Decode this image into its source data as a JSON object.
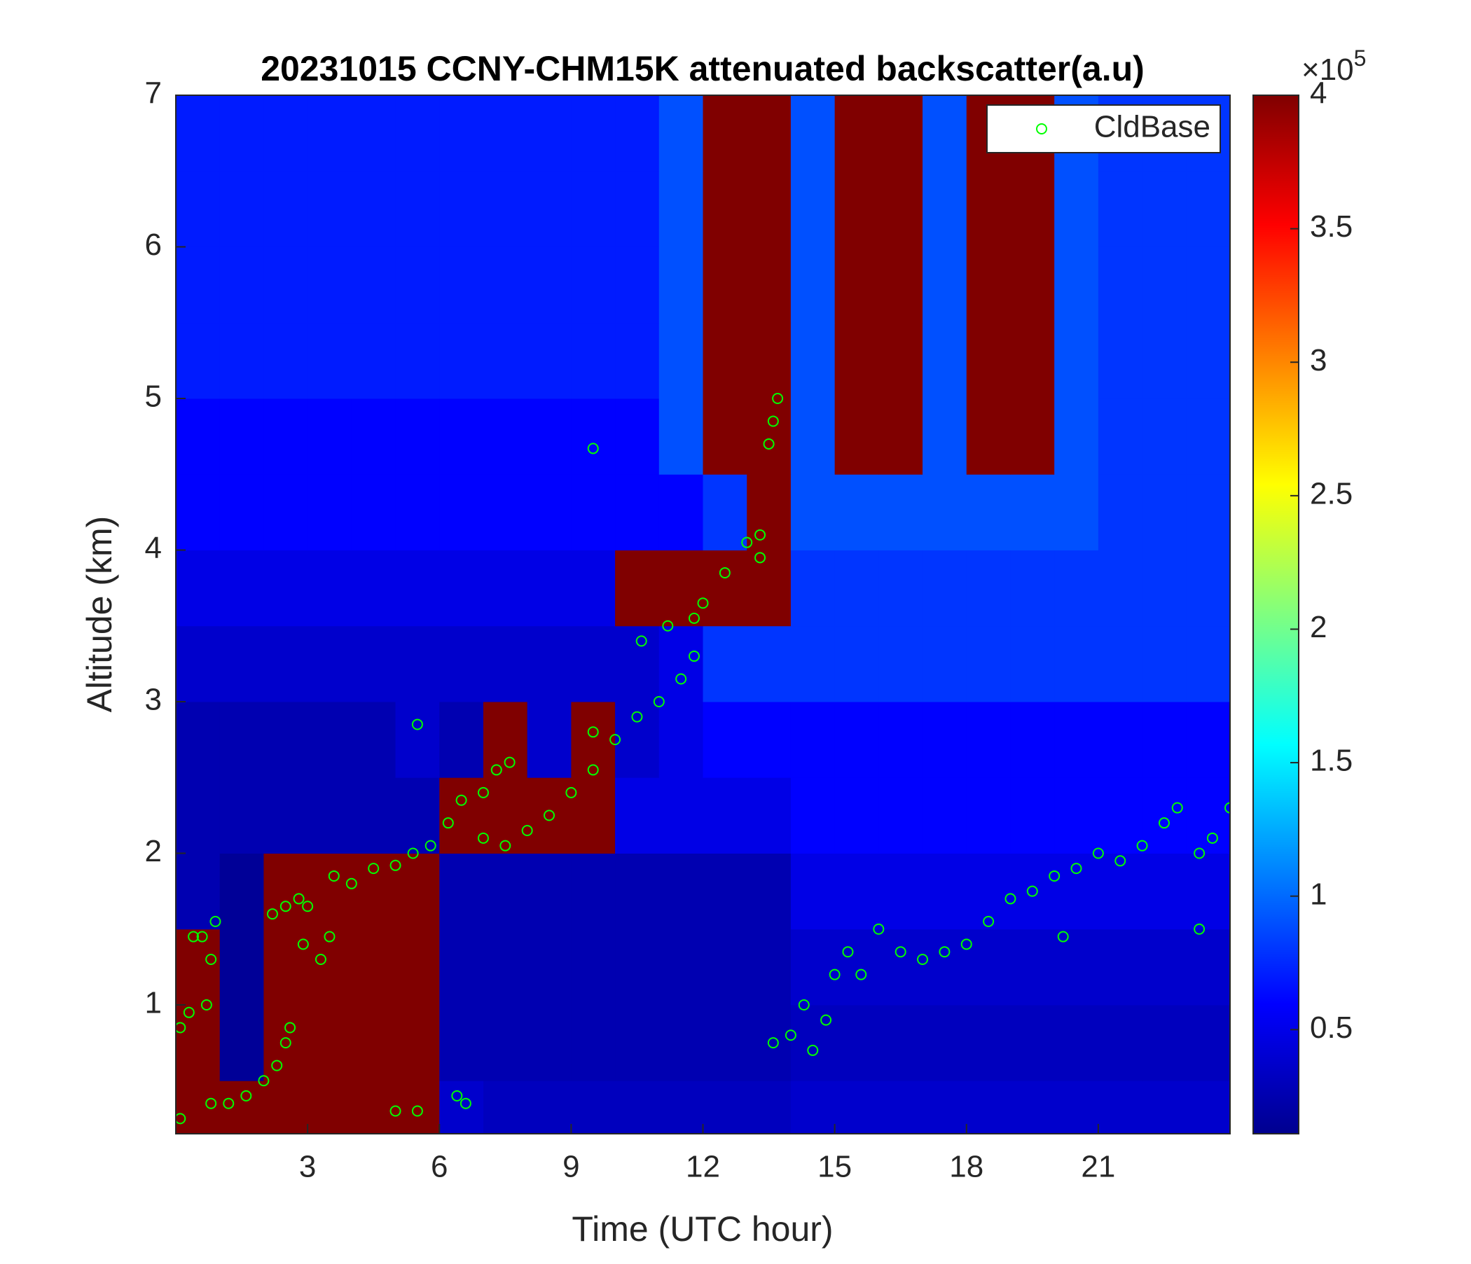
{
  "chart_data": {
    "type": "heatmap",
    "title": "20231015 CCNY-CHM15K attenuated backscatter(a.u)",
    "xlabel": "Time (UTC hour)",
    "ylabel": "Altitude (km)",
    "xlim": [
      0,
      24
    ],
    "ylim": [
      0.15,
      7
    ],
    "xticks": [
      3,
      6,
      9,
      12,
      15,
      18,
      21
    ],
    "yticks": [
      1,
      2,
      3,
      4,
      5,
      6,
      7
    ],
    "colormap": "jet",
    "clim": [
      0.11,
      4
    ],
    "cticks": [
      0.5,
      1,
      1.5,
      2,
      2.5,
      3,
      3.5,
      4
    ],
    "colorbar_multiplier": {
      "base": "×10",
      "exponent": "5"
    },
    "x_edges": [
      0,
      1,
      2,
      3,
      4,
      5,
      6,
      7,
      8,
      9,
      10,
      11,
      12,
      13,
      14,
      15,
      16,
      17,
      18,
      19,
      20,
      21,
      22,
      23,
      24
    ],
    "y_edges": [
      0.15,
      0.5,
      1,
      1.5,
      2,
      2.5,
      3,
      3.5,
      4,
      4.5,
      5,
      5.5,
      6,
      6.5,
      7
    ],
    "z": [
      [
        4,
        4,
        4,
        4,
        4,
        4,
        0.4,
        0.35,
        0.35,
        0.35,
        0.35,
        0.35,
        0.35,
        0.35,
        0.4,
        0.4,
        0.4,
        0.4,
        0.4,
        0.4,
        0.4,
        0.4,
        0.4,
        0.4
      ],
      [
        4,
        0.2,
        4,
        4,
        4,
        4,
        0.3,
        0.3,
        0.3,
        0.3,
        0.3,
        0.3,
        0.3,
        0.3,
        0.35,
        0.35,
        0.35,
        0.35,
        0.35,
        0.35,
        0.35,
        0.35,
        0.35,
        0.35
      ],
      [
        4,
        0.2,
        4,
        4,
        4,
        4,
        0.3,
        0.3,
        0.3,
        0.3,
        0.3,
        0.3,
        0.3,
        0.3,
        0.4,
        0.4,
        0.4,
        0.4,
        0.4,
        0.4,
        0.4,
        0.4,
        0.4,
        0.4
      ],
      [
        0.3,
        0.2,
        4,
        4,
        4,
        4,
        0.3,
        0.3,
        0.3,
        0.3,
        0.3,
        0.3,
        0.3,
        0.3,
        0.5,
        0.5,
        0.5,
        0.5,
        0.5,
        0.5,
        0.5,
        0.5,
        0.5,
        0.5
      ],
      [
        0.3,
        0.3,
        0.3,
        0.3,
        0.3,
        0.3,
        4,
        4,
        4,
        4,
        0.5,
        0.5,
        0.5,
        0.5,
        0.6,
        0.6,
        0.6,
        0.6,
        0.6,
        0.6,
        0.6,
        0.6,
        0.6,
        0.6
      ],
      [
        0.3,
        0.3,
        0.3,
        0.3,
        0.3,
        0.4,
        0.3,
        4,
        0.4,
        4,
        0.4,
        0.5,
        0.6,
        0.6,
        0.6,
        0.6,
        0.6,
        0.6,
        0.6,
        0.6,
        0.6,
        0.6,
        0.6,
        0.6
      ],
      [
        0.4,
        0.4,
        0.4,
        0.4,
        0.4,
        0.4,
        0.4,
        0.4,
        0.4,
        0.4,
        0.4,
        0.5,
        0.8,
        0.8,
        0.8,
        0.8,
        0.8,
        0.8,
        0.8,
        0.8,
        0.8,
        0.8,
        0.8,
        0.8
      ],
      [
        0.5,
        0.5,
        0.5,
        0.5,
        0.5,
        0.5,
        0.5,
        0.5,
        0.5,
        0.5,
        4,
        4,
        4,
        4,
        0.8,
        0.8,
        0.8,
        0.8,
        0.8,
        0.8,
        0.8,
        0.8,
        0.8,
        0.8
      ],
      [
        0.6,
        0.6,
        0.6,
        0.6,
        0.6,
        0.6,
        0.6,
        0.6,
        0.6,
        0.6,
        0.6,
        0.6,
        0.8,
        4,
        0.9,
        0.9,
        0.9,
        0.9,
        0.9,
        0.9,
        0.9,
        0.8,
        0.8,
        0.8
      ],
      [
        0.6,
        0.6,
        0.6,
        0.6,
        0.6,
        0.6,
        0.6,
        0.6,
        0.6,
        0.6,
        0.6,
        0.9,
        4,
        4,
        0.9,
        4,
        4,
        0.9,
        4,
        4,
        0.9,
        0.8,
        0.8,
        0.8
      ],
      [
        0.7,
        0.7,
        0.7,
        0.7,
        0.7,
        0.7,
        0.7,
        0.7,
        0.7,
        0.7,
        0.7,
        0.9,
        4,
        4,
        0.9,
        4,
        4,
        0.9,
        4,
        4,
        0.9,
        0.8,
        0.8,
        0.8
      ],
      [
        0.7,
        0.7,
        0.7,
        0.7,
        0.7,
        0.7,
        0.7,
        0.7,
        0.7,
        0.7,
        0.7,
        0.9,
        4,
        4,
        0.9,
        4,
        4,
        0.9,
        4,
        4,
        0.9,
        0.8,
        0.8,
        0.8
      ],
      [
        0.7,
        0.7,
        0.7,
        0.7,
        0.7,
        0.7,
        0.7,
        0.7,
        0.7,
        0.7,
        0.7,
        0.9,
        4,
        4,
        0.9,
        4,
        4,
        0.9,
        4,
        4,
        0.9,
        0.8,
        0.8,
        0.8
      ],
      [
        0.7,
        0.7,
        0.7,
        0.7,
        0.7,
        0.7,
        0.7,
        0.7,
        0.7,
        0.7,
        0.7,
        0.9,
        4,
        4,
        0.9,
        4,
        4,
        0.9,
        4,
        4,
        0.9,
        0.8,
        0.8,
        0.8
      ]
    ],
    "overlay": {
      "type": "scatter",
      "name": "CldBase",
      "color": "#00ff00",
      "x": [
        0.1,
        0.1,
        0.3,
        0.4,
        0.6,
        0.7,
        0.8,
        0.9,
        0.8,
        1.2,
        1.6,
        2.0,
        2.3,
        2.5,
        2.6,
        2.2,
        2.5,
        2.8,
        3.0,
        2.9,
        3.3,
        3.5,
        3.6,
        4.0,
        4.5,
        5.0,
        5.4,
        5.5,
        5.0,
        5.5,
        5.8,
        6.2,
        6.5,
        6.4,
        6.6,
        7.0,
        7.3,
        7.6,
        7.0,
        7.5,
        8.0,
        8.5,
        9.0,
        9.5,
        9.5,
        10.0,
        9.5,
        10.5,
        11.0,
        11.5,
        11.8,
        10.6,
        11.2,
        11.8,
        12.0,
        12.5,
        13.0,
        13.3,
        13.5,
        13.6,
        13.7,
        13.3,
        13.6,
        14.0,
        14.3,
        14.5,
        14.8,
        15.0,
        15.3,
        15.6,
        16.0,
        16.5,
        17.0,
        17.5,
        18.0,
        18.5,
        19.0,
        19.5,
        20.0,
        20.2,
        20.5,
        21.0,
        21.5,
        22.0,
        22.5,
        22.8,
        23.3,
        23.3,
        23.6,
        24.0
      ],
      "y": [
        0.25,
        0.85,
        0.95,
        1.45,
        1.45,
        1.0,
        1.3,
        1.55,
        0.35,
        0.35,
        0.4,
        0.5,
        0.6,
        0.75,
        0.85,
        1.6,
        1.65,
        1.7,
        1.65,
        1.4,
        1.3,
        1.45,
        1.85,
        1.8,
        1.9,
        1.92,
        2.0,
        2.85,
        0.3,
        0.3,
        2.05,
        2.2,
        2.35,
        0.4,
        0.35,
        2.4,
        2.55,
        2.6,
        2.1,
        2.05,
        2.15,
        2.25,
        2.4,
        2.55,
        2.8,
        2.75,
        4.67,
        2.9,
        3.0,
        3.15,
        3.3,
        3.4,
        3.5,
        3.55,
        3.65,
        3.85,
        4.05,
        4.1,
        4.7,
        4.85,
        5.0,
        3.95,
        0.75,
        0.8,
        1.0,
        0.7,
        0.9,
        1.2,
        1.35,
        1.2,
        1.5,
        1.35,
        1.3,
        1.35,
        1.4,
        1.55,
        1.7,
        1.75,
        1.85,
        1.45,
        1.9,
        2.0,
        1.95,
        2.05,
        2.2,
        2.3,
        2.0,
        1.5,
        2.1,
        2.3
      ]
    },
    "legend": "northeast"
  }
}
